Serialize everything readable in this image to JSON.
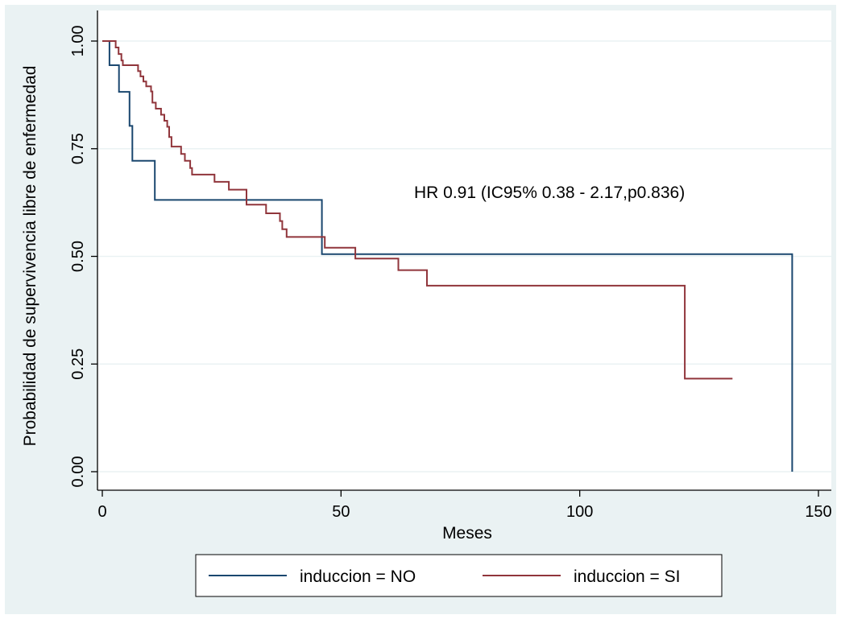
{
  "chart_data": {
    "type": "line",
    "title": "",
    "xlabel": "Meses",
    "ylabel": "Probabilidad de supervivencia libre de enfermedad",
    "xlim": [
      0,
      150
    ],
    "ylim": [
      0,
      1
    ],
    "x_ticks": [
      "0",
      "50",
      "100",
      "150"
    ],
    "y_ticks": [
      "0.00",
      "0.25",
      "0.50",
      "0.75",
      "1.00"
    ],
    "grid": true,
    "legend_position": "bottom",
    "annotation": "HR 0.91 (IC95% 0.38 - 2.17,p0.836)",
    "series": [
      {
        "name": "induccion = NO",
        "color": "#1a476f",
        "step": true,
        "x": [
          0,
          1.5,
          3.5,
          5.7,
          6.3,
          11,
          46,
          144.5,
          144.5
        ],
        "y": [
          1.0,
          0.944,
          0.882,
          0.803,
          0.722,
          0.631,
          0.505,
          0.505,
          0.0
        ]
      },
      {
        "name": "induccion = SI",
        "color": "#90353b",
        "step": true,
        "x": [
          0,
          2.8,
          3.4,
          4.0,
          4.3,
          7.5,
          8.0,
          8.6,
          9.2,
          10.2,
          10.5,
          11.2,
          12.3,
          13.0,
          13.6,
          14.0,
          14.5,
          16.5,
          17.3,
          18.4,
          18.8,
          23.5,
          26.5,
          30.2,
          34.3,
          37.2,
          37.7,
          38.6,
          46.6,
          53,
          62,
          68,
          122,
          132
        ],
        "y": [
          1.0,
          0.985,
          0.97,
          0.955,
          0.944,
          0.93,
          0.918,
          0.906,
          0.895,
          0.883,
          0.857,
          0.843,
          0.829,
          0.815,
          0.801,
          0.777,
          0.755,
          0.738,
          0.722,
          0.705,
          0.69,
          0.673,
          0.655,
          0.62,
          0.6,
          0.582,
          0.563,
          0.545,
          0.52,
          0.495,
          0.468,
          0.432,
          0.216,
          0.216
        ]
      }
    ]
  }
}
